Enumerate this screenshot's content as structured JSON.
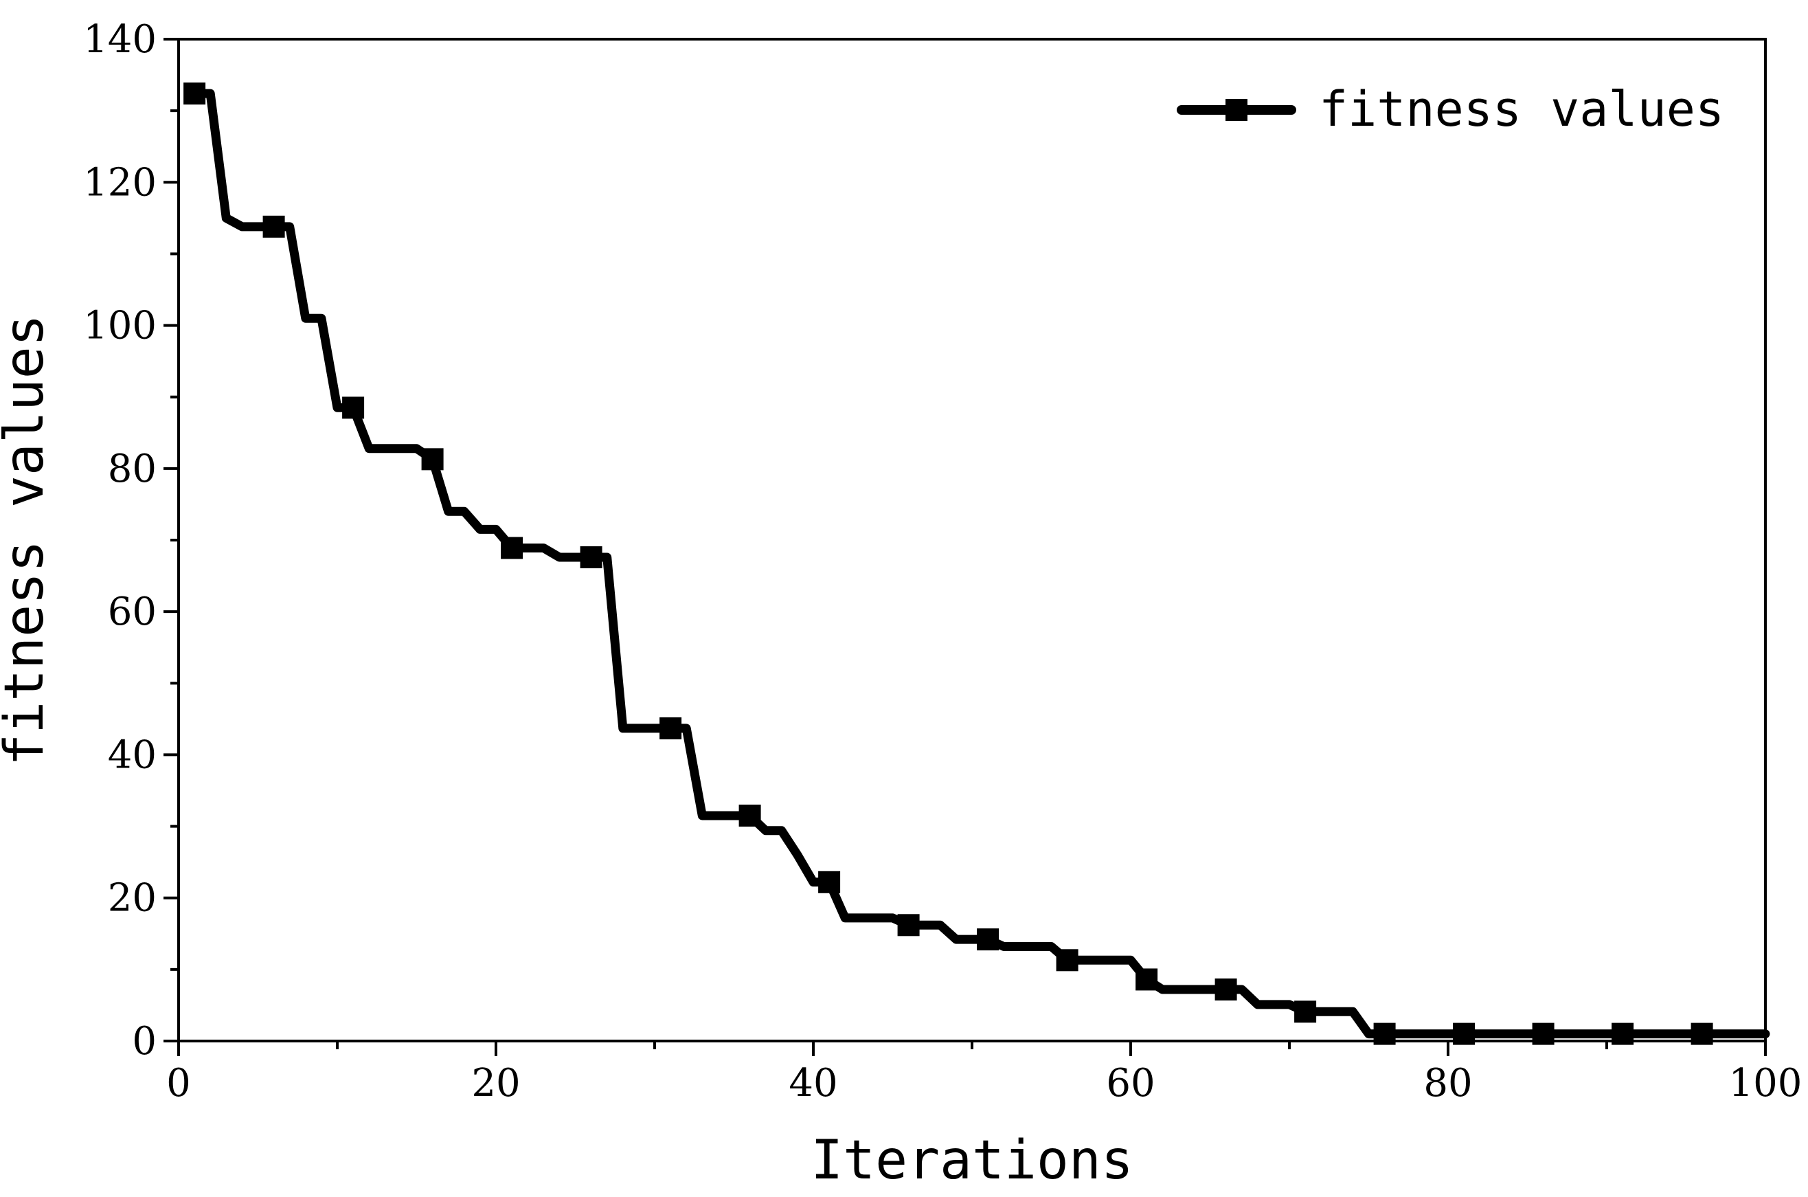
{
  "chart_data": {
    "type": "line",
    "xlabel": "Iterations",
    "ylabel": "fitness values",
    "xlim": [
      0,
      100
    ],
    "ylim": [
      0,
      140
    ],
    "xticks": [
      0,
      20,
      40,
      60,
      80,
      100
    ],
    "xtick_labels": [
      "0",
      "20",
      "40",
      "60",
      "80",
      "100"
    ],
    "yticks": [
      0,
      20,
      40,
      60,
      80,
      100,
      120,
      140
    ],
    "ytick_labels": [
      "0",
      "20",
      "40",
      "60",
      "80",
      "100",
      "120",
      "140"
    ],
    "grid": false,
    "legend": {
      "placement": "top-right"
    },
    "series": [
      {
        "name": "fitness values",
        "color": "#000000",
        "marker": "square",
        "marker_every": 5,
        "x": [
          1,
          2,
          3,
          4,
          5,
          6,
          7,
          8,
          9,
          10,
          11,
          12,
          13,
          14,
          15,
          16,
          17,
          18,
          19,
          20,
          21,
          22,
          23,
          24,
          25,
          26,
          27,
          28,
          29,
          30,
          31,
          32,
          33,
          34,
          35,
          36,
          37,
          38,
          39,
          40,
          41,
          42,
          43,
          44,
          45,
          46,
          47,
          48,
          49,
          50,
          51,
          52,
          53,
          54,
          55,
          56,
          57,
          58,
          59,
          60,
          61,
          62,
          63,
          64,
          65,
          66,
          67,
          68,
          69,
          70,
          71,
          72,
          73,
          74,
          75,
          76,
          77,
          78,
          79,
          80,
          81,
          82,
          83,
          84,
          85,
          86,
          87,
          88,
          89,
          90,
          91,
          92,
          93,
          94,
          95,
          96,
          97,
          98,
          99,
          100
        ],
        "y": [
          132.4,
          132.4,
          115,
          113.8,
          113.8,
          113.8,
          113.8,
          101,
          101,
          88.5,
          88.5,
          82.8,
          82.8,
          82.8,
          82.8,
          81.3,
          74,
          74,
          71.5,
          71.5,
          68.9,
          68.9,
          68.9,
          67.6,
          67.6,
          67.6,
          67.6,
          43.7,
          43.7,
          43.7,
          43.7,
          43.7,
          31.5,
          31.5,
          31.5,
          31.5,
          29.4,
          29.4,
          26,
          22.2,
          22.2,
          17.2,
          17.2,
          17.2,
          17.2,
          16.2,
          16.2,
          16.2,
          14.2,
          14.2,
          14.2,
          13.2,
          13.2,
          13.2,
          13.2,
          11.3,
          11.3,
          11.3,
          11.3,
          11.3,
          8.6,
          7.2,
          7.2,
          7.2,
          7.2,
          7.2,
          7.2,
          5.1,
          5.1,
          5.1,
          4.1,
          4.1,
          4.1,
          4.1,
          1,
          1,
          1,
          1,
          1,
          1,
          1,
          1,
          1,
          1,
          1,
          1,
          1,
          1,
          1,
          1,
          1,
          1,
          1,
          1,
          1,
          1,
          1,
          1,
          1,
          1
        ]
      }
    ]
  }
}
